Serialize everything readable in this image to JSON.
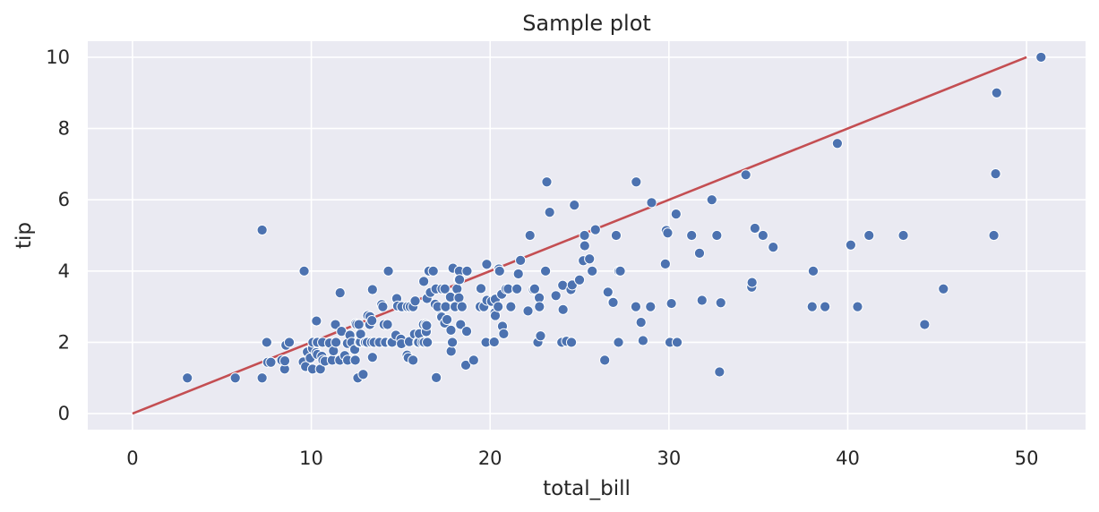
{
  "chart_data": {
    "type": "scatter",
    "title": "Sample plot",
    "xlabel": "total_bill",
    "ylabel": "tip",
    "xlim": [
      -2.5,
      53.3
    ],
    "ylim": [
      -0.45,
      10.45
    ],
    "xticks": [
      0,
      10,
      20,
      30,
      40,
      50
    ],
    "yticks": [
      0,
      2,
      4,
      6,
      8,
      10
    ],
    "grid": true,
    "colors": {
      "points": "#4c72b0",
      "line": "#c44e52",
      "background": "#eaeaf2",
      "grid": "#ffffff"
    },
    "line": {
      "x": [
        0,
        50
      ],
      "y": [
        0,
        10
      ]
    },
    "points": [
      [
        3.07,
        1.0
      ],
      [
        5.75,
        1.0
      ],
      [
        7.25,
        1.0
      ],
      [
        7.25,
        5.15
      ],
      [
        7.51,
        2.0
      ],
      [
        7.56,
        1.44
      ],
      [
        7.74,
        1.44
      ],
      [
        8.35,
        1.5
      ],
      [
        8.51,
        1.25
      ],
      [
        8.52,
        1.48
      ],
      [
        8.58,
        1.92
      ],
      [
        8.77,
        2.0
      ],
      [
        9.55,
        1.45
      ],
      [
        9.6,
        4.0
      ],
      [
        9.68,
        1.32
      ],
      [
        9.78,
        1.73
      ],
      [
        9.94,
        1.56
      ],
      [
        10.07,
        1.83
      ],
      [
        10.07,
        1.25
      ],
      [
        10.09,
        2.0
      ],
      [
        10.27,
        1.71
      ],
      [
        10.29,
        2.6
      ],
      [
        10.33,
        2.0
      ],
      [
        10.34,
        1.66
      ],
      [
        10.34,
        2.0
      ],
      [
        10.51,
        1.25
      ],
      [
        10.59,
        1.61
      ],
      [
        10.63,
        2.0
      ],
      [
        10.65,
        1.5
      ],
      [
        10.77,
        1.47
      ],
      [
        11.02,
        1.98
      ],
      [
        11.17,
        1.5
      ],
      [
        11.24,
        1.76
      ],
      [
        11.35,
        2.5
      ],
      [
        11.38,
        2.0
      ],
      [
        11.59,
        1.5
      ],
      [
        11.61,
        3.39
      ],
      [
        11.69,
        2.31
      ],
      [
        11.87,
        1.63
      ],
      [
        12.02,
        1.97
      ],
      [
        12.03,
        1.5
      ],
      [
        12.16,
        2.2
      ],
      [
        12.26,
        2.0
      ],
      [
        12.43,
        1.8
      ],
      [
        12.46,
        1.5
      ],
      [
        12.48,
        2.52
      ],
      [
        12.54,
        2.5
      ],
      [
        12.6,
        1.0
      ],
      [
        12.66,
        2.5
      ],
      [
        12.69,
        2.0
      ],
      [
        12.74,
        2.01
      ],
      [
        12.76,
        2.23
      ],
      [
        12.9,
        1.1
      ],
      [
        13.0,
        2.0
      ],
      [
        13.03,
        2.0
      ],
      [
        13.13,
        2.0
      ],
      [
        13.16,
        2.75
      ],
      [
        13.27,
        2.5
      ],
      [
        13.28,
        2.72
      ],
      [
        13.37,
        2.0
      ],
      [
        13.39,
        2.61
      ],
      [
        13.42,
        3.48
      ],
      [
        13.42,
        1.58
      ],
      [
        13.51,
        2.0
      ],
      [
        13.81,
        2.0
      ],
      [
        13.94,
        3.06
      ],
      [
        14.0,
        3.0
      ],
      [
        14.07,
        2.5
      ],
      [
        14.15,
        2.0
      ],
      [
        14.26,
        2.5
      ],
      [
        14.31,
        4.0
      ],
      [
        14.48,
        2.0
      ],
      [
        14.52,
        2.0
      ],
      [
        14.73,
        2.2
      ],
      [
        14.78,
        3.23
      ],
      [
        14.83,
        3.02
      ],
      [
        15.01,
        2.09
      ],
      [
        15.04,
        1.96
      ],
      [
        15.06,
        3.0
      ],
      [
        15.36,
        1.64
      ],
      [
        15.38,
        3.0
      ],
      [
        15.42,
        1.57
      ],
      [
        15.48,
        2.02
      ],
      [
        15.53,
        3.0
      ],
      [
        15.69,
        3.0
      ],
      [
        15.69,
        1.5
      ],
      [
        15.77,
        2.23
      ],
      [
        15.81,
        3.16
      ],
      [
        15.95,
        2.0
      ],
      [
        15.98,
        2.03
      ],
      [
        16.0,
        2.0
      ],
      [
        16.04,
        2.24
      ],
      [
        16.21,
        2.0
      ],
      [
        16.27,
        2.5
      ],
      [
        16.29,
        3.71
      ],
      [
        16.31,
        2.0
      ],
      [
        16.4,
        2.5
      ],
      [
        16.43,
        2.3
      ],
      [
        16.45,
        2.47
      ],
      [
        16.47,
        3.23
      ],
      [
        16.49,
        2.0
      ],
      [
        16.58,
        4.0
      ],
      [
        16.66,
        3.4
      ],
      [
        16.82,
        4.0
      ],
      [
        16.93,
        3.07
      ],
      [
        16.97,
        3.5
      ],
      [
        16.99,
        1.01
      ],
      [
        17.07,
        3.0
      ],
      [
        17.26,
        2.74
      ],
      [
        17.29,
        2.71
      ],
      [
        17.31,
        3.5
      ],
      [
        17.46,
        2.54
      ],
      [
        17.47,
        3.5
      ],
      [
        17.51,
        3.0
      ],
      [
        17.59,
        2.64
      ],
      [
        17.78,
        3.27
      ],
      [
        17.81,
        2.34
      ],
      [
        17.82,
        1.75
      ],
      [
        17.89,
        2.0
      ],
      [
        17.92,
        4.08
      ],
      [
        18.04,
        3.0
      ],
      [
        18.15,
        3.5
      ],
      [
        18.24,
        3.76
      ],
      [
        18.26,
        3.25
      ],
      [
        18.28,
        4.0
      ],
      [
        18.29,
        3.76
      ],
      [
        18.35,
        2.5
      ],
      [
        18.43,
        3.0
      ],
      [
        18.64,
        1.36
      ],
      [
        18.69,
        2.31
      ],
      [
        18.71,
        4.0
      ],
      [
        19.08,
        1.5
      ],
      [
        19.44,
        3.0
      ],
      [
        19.49,
        3.51
      ],
      [
        19.65,
        3.0
      ],
      [
        19.77,
        2.0
      ],
      [
        19.81,
        4.19
      ],
      [
        19.82,
        3.18
      ],
      [
        20.08,
        3.15
      ],
      [
        20.23,
        2.01
      ],
      [
        20.27,
        2.83
      ],
      [
        20.29,
        2.75
      ],
      [
        20.29,
        3.21
      ],
      [
        20.45,
        3.0
      ],
      [
        20.49,
        4.06
      ],
      [
        20.53,
        4.0
      ],
      [
        20.65,
        3.35
      ],
      [
        20.69,
        2.45
      ],
      [
        20.76,
        2.24
      ],
      [
        20.9,
        3.5
      ],
      [
        21.01,
        3.5
      ],
      [
        21.16,
        3.0
      ],
      [
        21.5,
        3.5
      ],
      [
        21.58,
        3.92
      ],
      [
        21.7,
        4.3
      ],
      [
        22.12,
        2.88
      ],
      [
        22.23,
        5.0
      ],
      [
        22.42,
        3.48
      ],
      [
        22.49,
        3.5
      ],
      [
        22.67,
        2.0
      ],
      [
        22.75,
        3.25
      ],
      [
        22.76,
        3.0
      ],
      [
        22.82,
        2.18
      ],
      [
        23.1,
        4.0
      ],
      [
        23.17,
        6.5
      ],
      [
        23.33,
        5.65
      ],
      [
        23.68,
        3.31
      ],
      [
        24.01,
        2.0
      ],
      [
        24.06,
        3.6
      ],
      [
        24.08,
        2.92
      ],
      [
        24.27,
        2.03
      ],
      [
        24.52,
        3.48
      ],
      [
        24.55,
        2.0
      ],
      [
        24.59,
        3.61
      ],
      [
        24.71,
        5.85
      ],
      [
        25.0,
        3.75
      ],
      [
        25.21,
        4.29
      ],
      [
        25.28,
        5.0
      ],
      [
        25.29,
        4.71
      ],
      [
        25.56,
        4.34
      ],
      [
        25.71,
        4.0
      ],
      [
        25.89,
        5.16
      ],
      [
        26.41,
        1.5
      ],
      [
        26.59,
        3.41
      ],
      [
        26.86,
        3.14
      ],
      [
        26.88,
        3.12
      ],
      [
        27.05,
        5.0
      ],
      [
        27.18,
        2.0
      ],
      [
        27.2,
        4.0
      ],
      [
        27.28,
        4.0
      ],
      [
        28.15,
        3.0
      ],
      [
        28.17,
        6.5
      ],
      [
        28.44,
        2.56
      ],
      [
        28.55,
        2.05
      ],
      [
        28.97,
        3.0
      ],
      [
        29.03,
        5.92
      ],
      [
        29.8,
        4.2
      ],
      [
        29.85,
        5.14
      ],
      [
        29.93,
        5.07
      ],
      [
        30.06,
        2.0
      ],
      [
        30.14,
        3.09
      ],
      [
        30.4,
        5.6
      ],
      [
        30.46,
        2.0
      ],
      [
        31.27,
        5.0
      ],
      [
        31.71,
        4.5
      ],
      [
        31.85,
        3.18
      ],
      [
        32.4,
        6.0
      ],
      [
        32.68,
        5.0
      ],
      [
        32.83,
        1.17
      ],
      [
        32.9,
        3.11
      ],
      [
        34.3,
        6.7
      ],
      [
        34.63,
        3.55
      ],
      [
        34.65,
        3.68
      ],
      [
        34.81,
        5.2
      ],
      [
        35.26,
        5.0
      ],
      [
        35.83,
        4.67
      ],
      [
        38.01,
        3.0
      ],
      [
        38.07,
        4.0
      ],
      [
        38.73,
        3.0
      ],
      [
        39.42,
        7.58
      ],
      [
        40.17,
        4.73
      ],
      [
        40.55,
        3.0
      ],
      [
        41.19,
        5.0
      ],
      [
        43.11,
        5.0
      ],
      [
        44.3,
        2.5
      ],
      [
        45.35,
        3.5
      ],
      [
        48.17,
        5.0
      ],
      [
        48.27,
        6.73
      ],
      [
        48.33,
        9.0
      ],
      [
        50.81,
        10.0
      ]
    ]
  }
}
